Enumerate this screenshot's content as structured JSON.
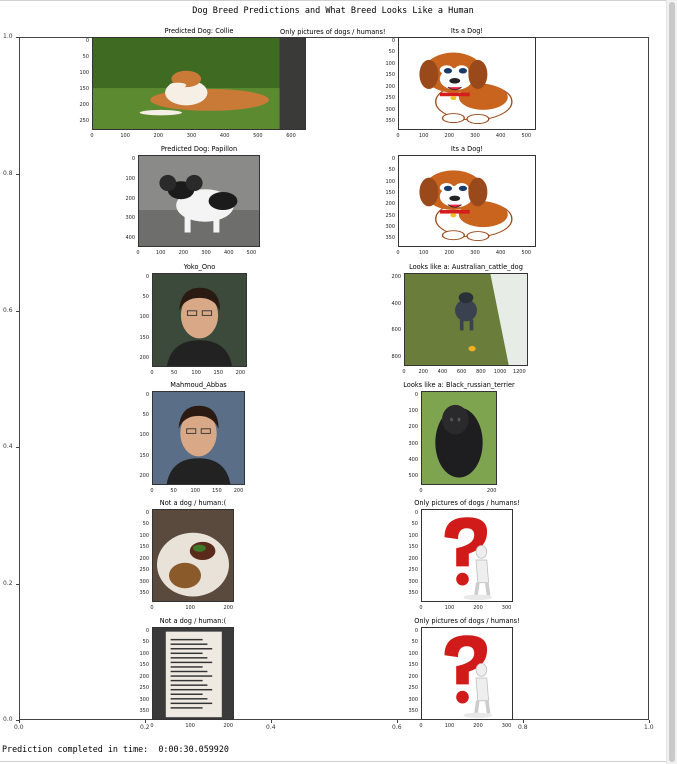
{
  "figure": {
    "suptitle": "Dog Breed Predictions and What Breed Looks Like a Human",
    "outer_yticks": [
      "1.0",
      "0.8",
      "0.6",
      "0.4",
      "0.2",
      "0.0"
    ],
    "outer_xticks": [
      "0.0",
      "0.2",
      "0.4",
      "0.6",
      "0.8",
      "1.0"
    ]
  },
  "subplots": [
    {
      "title": "Predicted Dog: Collie",
      "image": "collie-dog-photo",
      "yticks": [
        "0",
        "50",
        "100",
        "150",
        "200",
        "250"
      ],
      "xticks": [
        "0",
        "100",
        "200",
        "300",
        "400",
        "500",
        "600"
      ]
    },
    {
      "title": "Its a Dog!",
      "image": "cartoon-beagle-illustration",
      "yticks": [
        "0",
        "50",
        "100",
        "150",
        "200",
        "250",
        "300",
        "350"
      ],
      "xticks": [
        "0",
        "100",
        "200",
        "300",
        "400",
        "500"
      ]
    },
    {
      "title": "Predicted Dog: Papillon",
      "image": "papillon-dog-photo",
      "yticks": [
        "0",
        "100",
        "200",
        "300",
        "400"
      ],
      "xticks": [
        "0",
        "100",
        "200",
        "300",
        "400",
        "500"
      ]
    },
    {
      "title": "Its a Dog!",
      "image": "cartoon-beagle-illustration",
      "yticks": [
        "0",
        "50",
        "100",
        "150",
        "200",
        "250",
        "300",
        "350"
      ],
      "xticks": [
        "0",
        "100",
        "200",
        "300",
        "400",
        "500"
      ]
    },
    {
      "title": "Yoko_Ono",
      "image": "portrait-photo",
      "yticks": [
        "0",
        "50",
        "100",
        "150",
        "200"
      ],
      "xticks": [
        "0",
        "50",
        "100",
        "150",
        "200"
      ]
    },
    {
      "title": "Looks like a: Australian_cattle_dog",
      "image": "cattle-dog-on-grass-photo",
      "yticks": [
        "200",
        "400",
        "600",
        "800"
      ],
      "xticks": [
        "0",
        "200",
        "400",
        "600",
        "800",
        "1000",
        "1200"
      ]
    },
    {
      "title": "Mahmoud_Abbas",
      "image": "portrait-photo",
      "yticks": [
        "0",
        "50",
        "100",
        "150",
        "200"
      ],
      "xticks": [
        "0",
        "50",
        "100",
        "150",
        "200"
      ]
    },
    {
      "title": "Looks like a: Black_russian_terrier",
      "image": "black-terrier-photo",
      "yticks": [
        "0",
        "100",
        "200",
        "300",
        "400",
        "500"
      ],
      "xticks": [
        "0",
        "200"
      ]
    },
    {
      "title": "Not a dog / human:(",
      "image": "food-plate-photo",
      "yticks": [
        "0",
        "50",
        "100",
        "150",
        "200",
        "250",
        "300",
        "350"
      ],
      "xticks": [
        "0",
        "100",
        "200"
      ]
    },
    {
      "title": "Only pictures of dogs / humans!",
      "image": "question-mark-figure",
      "yticks": [
        "0",
        "50",
        "100",
        "150",
        "200",
        "250",
        "300",
        "350"
      ],
      "xticks": [
        "0",
        "100",
        "200",
        "300"
      ]
    },
    {
      "title": "Not a dog / human:(",
      "image": "menu-photo",
      "yticks": [
        "0",
        "50",
        "100",
        "150",
        "200",
        "250",
        "300",
        "350"
      ],
      "xticks": [
        "0",
        "100",
        "200"
      ]
    },
    {
      "title": "Only pictures of dogs / humans!",
      "image": "question-mark-figure",
      "yticks": [
        "0",
        "50",
        "100",
        "150",
        "200",
        "250",
        "300",
        "350"
      ],
      "xticks": [
        "0",
        "100",
        "200",
        "300"
      ]
    }
  ],
  "overlap_title": "Only pictures of dogs / humans!",
  "footer": {
    "label": "Prediction completed in time:",
    "value": "0:00:30.059920"
  }
}
